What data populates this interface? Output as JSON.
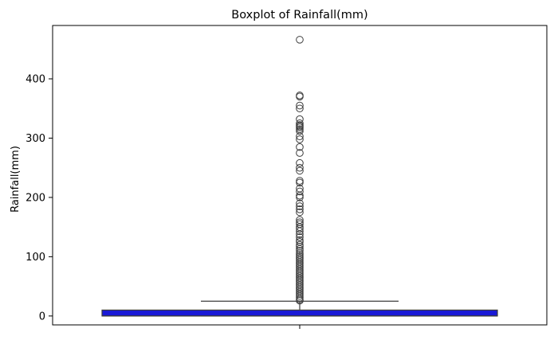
{
  "chart_data": {
    "type": "boxplot",
    "title": "Boxplot of Rainfall(mm)",
    "xlabel": "",
    "ylabel": "Rainfall(mm)",
    "ylim": [
      -15,
      490
    ],
    "yticks": [
      0,
      100,
      200,
      300,
      400
    ],
    "grid": false,
    "box_color": "#1a1ad6",
    "edge_color": "#3d3d3d",
    "stats": {
      "min": 0,
      "q1": 0,
      "median": 0,
      "q3": 10,
      "whisker_high": 25
    },
    "outliers": [
      466,
      372,
      370,
      355,
      350,
      332,
      325,
      322,
      320,
      318,
      315,
      312,
      303,
      298,
      285,
      275,
      258,
      250,
      245,
      228,
      225,
      215,
      210,
      203,
      200,
      190,
      185,
      180,
      175,
      162,
      158,
      155,
      150,
      147,
      143,
      138,
      133,
      128,
      125,
      120,
      117,
      113,
      110,
      106,
      103,
      100,
      97,
      94,
      91,
      88,
      85,
      82,
      79,
      76,
      73,
      70,
      67,
      64,
      61,
      58,
      55,
      52,
      49,
      46,
      43,
      40,
      37,
      34,
      31,
      28,
      26
    ]
  }
}
